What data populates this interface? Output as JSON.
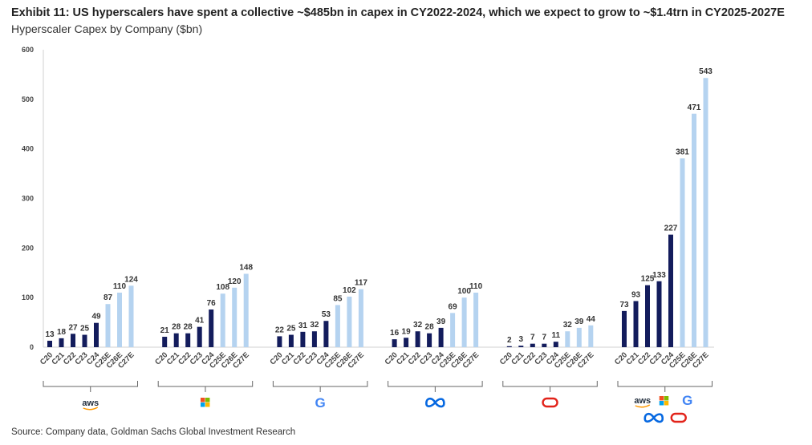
{
  "title": "Exhibit 11: US hyperscalers have spent a collective ~$485bn in capex in CY2022-2024, which we expect to grow to ~$1.4trn in CY2025-2027E",
  "subtitle": "Hyperscaler Capex by Company ($bn)",
  "source": "Source: Company data, Goldman Sachs Global Investment Research",
  "colors": {
    "actual": "#131c5c",
    "estimate": "#b5d3f0",
    "axis": "#d0d0d0",
    "bracket": "#666666"
  },
  "chart_data": {
    "type": "bar",
    "title": "Hyperscaler Capex by Company ($bn)",
    "ylim": [
      0,
      600
    ],
    "yticks": [
      0,
      100,
      200,
      300,
      400,
      500,
      600
    ],
    "grid": false,
    "categories": [
      "C20",
      "C21",
      "C22",
      "C23",
      "C24",
      "C25E",
      "C26E",
      "C27E"
    ],
    "estimate_categories": [
      "C25E",
      "C26E",
      "C27E"
    ],
    "groups": [
      {
        "company": "aws",
        "logo": "aws-logo",
        "values": [
          13,
          18,
          27,
          25,
          49,
          87,
          110,
          124
        ]
      },
      {
        "company": "Microsoft",
        "logo": "microsoft-logo",
        "values": [
          21,
          28,
          28,
          41,
          76,
          108,
          120,
          148
        ]
      },
      {
        "company": "Google",
        "logo": "google-logo",
        "values": [
          22,
          25,
          31,
          32,
          53,
          85,
          102,
          117
        ]
      },
      {
        "company": "Meta",
        "logo": "meta-logo",
        "values": [
          16,
          19,
          32,
          28,
          39,
          69,
          100,
          110
        ]
      },
      {
        "company": "Oracle",
        "logo": "oracle-logo",
        "values": [
          2,
          3,
          7,
          7,
          11,
          32,
          39,
          44
        ]
      },
      {
        "company": "Total",
        "logo": "all-logos",
        "values": [
          73,
          93,
          125,
          133,
          227,
          381,
          471,
          543
        ]
      }
    ]
  }
}
